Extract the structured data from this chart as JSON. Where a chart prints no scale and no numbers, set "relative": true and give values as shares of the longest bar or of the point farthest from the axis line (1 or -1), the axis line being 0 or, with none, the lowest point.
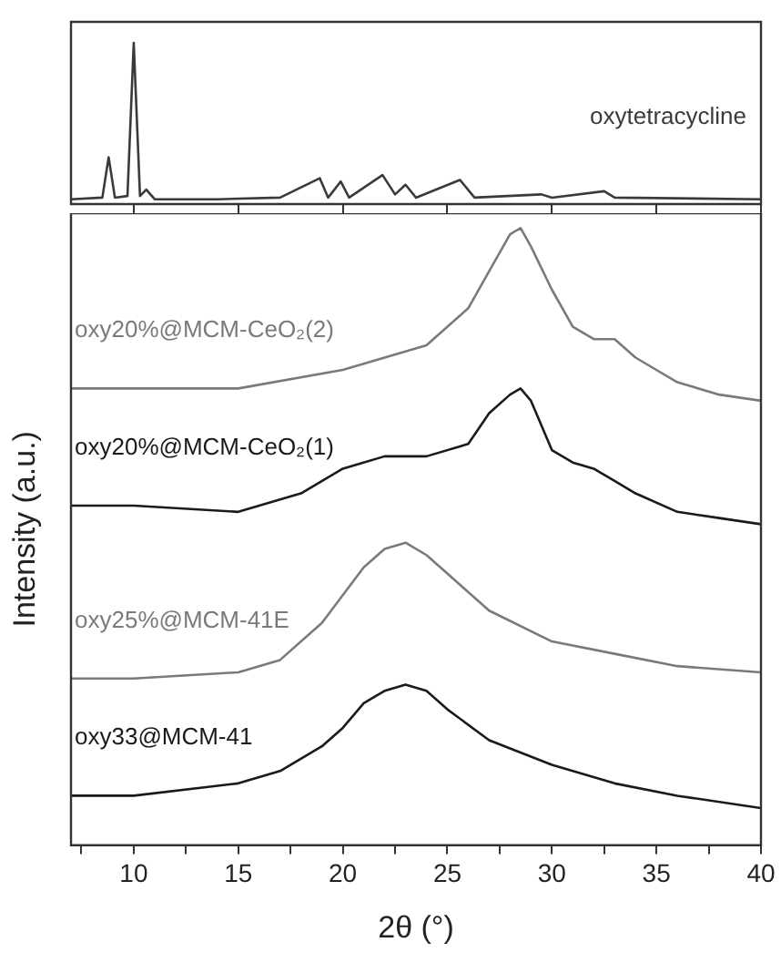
{
  "chart_data": [
    {
      "type": "line",
      "relative": true,
      "xlim": [
        7,
        40
      ],
      "xticks": [
        10,
        15,
        20,
        25,
        30,
        35,
        40
      ],
      "tick_labels": false,
      "grid": false,
      "legend": false,
      "marker": "none",
      "series": [
        {
          "name": "oxytetracycline",
          "color": "#3a3a3a",
          "x": [
            7,
            8.5,
            8.8,
            9.1,
            9.7,
            10.0,
            10.3,
            10.6,
            11,
            14,
            17,
            18.9,
            19.3,
            19.9,
            20.3,
            21.9,
            22.5,
            23,
            23.5,
            25.6,
            26.3,
            29.5,
            30,
            32.5,
            33,
            40
          ],
          "values": [
            0.03,
            0.04,
            0.29,
            0.04,
            0.05,
            1,
            0.05,
            0.09,
            0.03,
            0.03,
            0.04,
            0.16,
            0.04,
            0.14,
            0.04,
            0.18,
            0.06,
            0.12,
            0.04,
            0.15,
            0.04,
            0.06,
            0.04,
            0.08,
            0.04,
            0.03
          ]
        }
      ]
    },
    {
      "type": "line",
      "relative": true,
      "xlim": [
        7,
        40
      ],
      "xticks": [
        {
          "value": 7.5,
          "label": null
        },
        10,
        {
          "value": 12.5,
          "label": null
        },
        15,
        {
          "value": 17.5,
          "label": null
        },
        20,
        {
          "value": 22.5,
          "label": null
        },
        25,
        {
          "value": 27.5,
          "label": null
        },
        30,
        {
          "value": 32.5,
          "label": null
        },
        35,
        {
          "value": 37.5,
          "label": null
        },
        40
      ],
      "xlabel": "2θ (°)",
      "ylabel": "Intensity (a.u.)",
      "grid": false,
      "legend": false,
      "marker": "none",
      "series": [
        {
          "name": "oxy20%@MCM-CeO₂(2)",
          "color": "#7a7a7a",
          "x": [
            7,
            10,
            15,
            20,
            22,
            24,
            26,
            27,
            28,
            28.5,
            29,
            30,
            31,
            32,
            33,
            34,
            36,
            38,
            40
          ],
          "values": [
            0.74,
            0.74,
            0.74,
            0.77,
            0.79,
            0.81,
            0.87,
            0.93,
            0.99,
            1,
            0.97,
            0.9,
            0.84,
            0.82,
            0.82,
            0.79,
            0.75,
            0.73,
            0.72
          ]
        },
        {
          "name": "oxy20%@MCM-CeO₂(1)",
          "color": "#1a1a1a",
          "x": [
            7,
            10,
            15,
            18,
            20,
            22,
            24,
            26,
            27,
            28,
            28.5,
            29,
            30,
            31,
            32,
            33,
            34,
            36,
            38,
            40
          ],
          "values": [
            0.55,
            0.55,
            0.54,
            0.57,
            0.61,
            0.63,
            0.63,
            0.65,
            0.7,
            0.73,
            0.74,
            0.72,
            0.64,
            0.62,
            0.61,
            0.59,
            0.57,
            0.54,
            0.53,
            0.52
          ]
        },
        {
          "name": "oxy25%@MCM-41E",
          "color": "#7a7a7a",
          "x": [
            7,
            10,
            15,
            17,
            19,
            21,
            22,
            23,
            24,
            25,
            27,
            30,
            33,
            36,
            40
          ],
          "values": [
            0.27,
            0.27,
            0.28,
            0.3,
            0.36,
            0.45,
            0.48,
            0.49,
            0.47,
            0.44,
            0.38,
            0.33,
            0.31,
            0.29,
            0.28
          ]
        },
        {
          "name": "oxy33@MCM-41",
          "color": "#1a1a1a",
          "x": [
            7,
            10,
            15,
            17,
            19,
            20,
            21,
            22,
            23,
            24,
            25,
            27,
            30,
            33,
            36,
            40
          ],
          "values": [
            0.08,
            0.08,
            0.1,
            0.12,
            0.16,
            0.19,
            0.23,
            0.25,
            0.26,
            0.25,
            0.22,
            0.17,
            0.13,
            0.1,
            0.08,
            0.06
          ]
        }
      ]
    }
  ]
}
